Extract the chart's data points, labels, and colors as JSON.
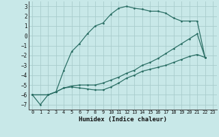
{
  "title": "",
  "xlabel": "Humidex (Indice chaleur)",
  "bg_color": "#c8e8e8",
  "grid_color": "#a8cccc",
  "line_color": "#2a6e64",
  "xlim": [
    -0.5,
    23.5
  ],
  "ylim": [
    -7.5,
    3.5
  ],
  "xticks": [
    0,
    1,
    2,
    3,
    4,
    5,
    6,
    7,
    8,
    9,
    10,
    11,
    12,
    13,
    14,
    15,
    16,
    17,
    18,
    19,
    20,
    21,
    22,
    23
  ],
  "yticks": [
    -7,
    -6,
    -5,
    -4,
    -3,
    -2,
    -1,
    0,
    1,
    2,
    3
  ],
  "line1_x": [
    0,
    1,
    2,
    3,
    4,
    5,
    6,
    7,
    8,
    9,
    10,
    11,
    12,
    13,
    14,
    15,
    16,
    17,
    18,
    19,
    20,
    21,
    22
  ],
  "line1_y": [
    -6.0,
    -7.0,
    -6.0,
    -5.7,
    -3.5,
    -1.6,
    -0.8,
    0.2,
    1.0,
    1.3,
    2.2,
    2.8,
    3.0,
    2.8,
    2.7,
    2.5,
    2.5,
    2.3,
    1.8,
    1.5,
    1.5,
    1.5,
    -2.2
  ],
  "line2_x": [
    0,
    2,
    3,
    4,
    5,
    6,
    7,
    8,
    9,
    10,
    11,
    12,
    13,
    14,
    15,
    16,
    17,
    18,
    19,
    20,
    21,
    22
  ],
  "line2_y": [
    -6.0,
    -6.0,
    -5.7,
    -5.3,
    -5.1,
    -5.0,
    -5.0,
    -5.0,
    -4.8,
    -4.5,
    -4.2,
    -3.8,
    -3.5,
    -3.0,
    -2.7,
    -2.3,
    -1.8,
    -1.3,
    -0.8,
    -0.3,
    0.2,
    -2.2
  ],
  "line3_x": [
    0,
    2,
    3,
    4,
    5,
    6,
    7,
    8,
    9,
    10,
    11,
    12,
    13,
    14,
    15,
    16,
    17,
    18,
    19,
    20,
    21,
    22
  ],
  "line3_y": [
    -6.0,
    -6.0,
    -5.7,
    -5.3,
    -5.2,
    -5.3,
    -5.4,
    -5.5,
    -5.5,
    -5.2,
    -4.8,
    -4.3,
    -4.0,
    -3.6,
    -3.4,
    -3.2,
    -3.0,
    -2.7,
    -2.4,
    -2.1,
    -1.9,
    -2.2
  ]
}
